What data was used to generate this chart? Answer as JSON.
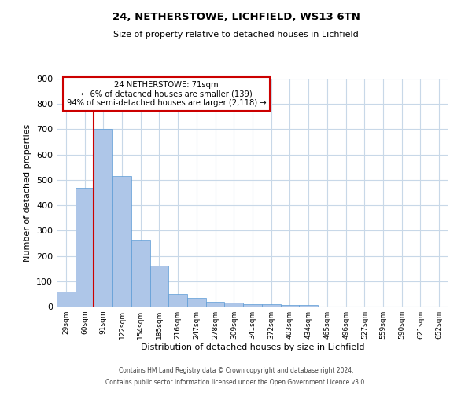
{
  "title1": "24, NETHERSTOWE, LICHFIELD, WS13 6TN",
  "title2": "Size of property relative to detached houses in Lichfield",
  "xlabel": "Distribution of detached houses by size in Lichfield",
  "ylabel": "Number of detached properties",
  "bin_labels": [
    "29sqm",
    "60sqm",
    "91sqm",
    "122sqm",
    "154sqm",
    "185sqm",
    "216sqm",
    "247sqm",
    "278sqm",
    "309sqm",
    "341sqm",
    "372sqm",
    "403sqm",
    "434sqm",
    "465sqm",
    "496sqm",
    "527sqm",
    "559sqm",
    "590sqm",
    "621sqm",
    "652sqm"
  ],
  "bar_values": [
    60,
    470,
    700,
    515,
    265,
    160,
    50,
    35,
    20,
    15,
    10,
    10,
    5,
    5,
    0,
    0,
    0,
    0,
    0,
    0,
    0
  ],
  "bar_color": "#aec6e8",
  "bar_edge_color": "#5b9bd5",
  "ylim": [
    0,
    900
  ],
  "yticks": [
    0,
    100,
    200,
    300,
    400,
    500,
    600,
    700,
    800,
    900
  ],
  "vline_x": 1.5,
  "vline_color": "#cc0000",
  "annotation_title": "24 NETHERSTOWE: 71sqm",
  "annotation_line1": "← 6% of detached houses are smaller (139)",
  "annotation_line2": "94% of semi-detached houses are larger (2,118) →",
  "annotation_box_color": "#cc0000",
  "footnote1": "Contains HM Land Registry data © Crown copyright and database right 2024.",
  "footnote2": "Contains public sector information licensed under the Open Government Licence v3.0.",
  "background_color": "#ffffff",
  "grid_color": "#c8d8e8"
}
